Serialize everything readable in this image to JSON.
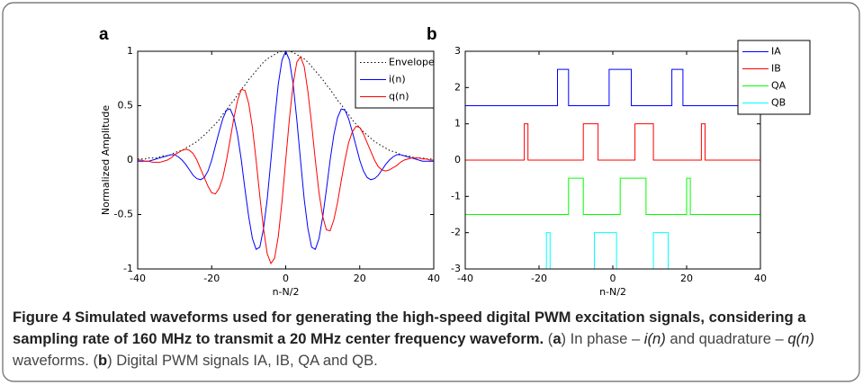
{
  "chart_data": [
    {
      "type": "line",
      "panel_label": "a",
      "xlabel": "n-N/2",
      "ylabel": "Normalized Amplitude",
      "xlim": [
        -40,
        40
      ],
      "ylim": [
        -1,
        1
      ],
      "xticks": [
        -40,
        -20,
        0,
        20,
        40
      ],
      "yticks": [
        -1,
        -0.5,
        0,
        0.5,
        1
      ],
      "grid": false,
      "legend": "upper right",
      "x": [
        -40,
        -39,
        -38,
        -37,
        -36,
        -35,
        -34,
        -33,
        -32,
        -31,
        -30,
        -29,
        -28,
        -27,
        -26,
        -25,
        -24,
        -23,
        -22,
        -21,
        -20,
        -19,
        -18,
        -17,
        -16,
        -15,
        -14,
        -13,
        -12,
        -11,
        -10,
        -9,
        -8,
        -7,
        -6,
        -5,
        -4,
        -3,
        -2,
        -1,
        0,
        1,
        2,
        3,
        4,
        5,
        6,
        7,
        8,
        9,
        10,
        11,
        12,
        13,
        14,
        15,
        16,
        17,
        18,
        19,
        20,
        21,
        22,
        23,
        24,
        25,
        26,
        27,
        28,
        29,
        30,
        31,
        32,
        33,
        34,
        35,
        36,
        37,
        38,
        39,
        40
      ],
      "series": [
        {
          "name": "Envelope",
          "color": "#000000",
          "style": "dotted",
          "values": [
            0.01,
            0.01,
            0.01,
            0.02,
            0.02,
            0.02,
            0.03,
            0.04,
            0.04,
            0.05,
            0.07,
            0.08,
            0.09,
            0.11,
            0.13,
            0.15,
            0.17,
            0.2,
            0.23,
            0.26,
            0.3,
            0.33,
            0.37,
            0.42,
            0.46,
            0.51,
            0.55,
            0.6,
            0.65,
            0.69,
            0.74,
            0.78,
            0.82,
            0.86,
            0.9,
            0.93,
            0.95,
            0.97,
            0.99,
            1.0,
            1.0,
            1.0,
            0.99,
            0.97,
            0.95,
            0.93,
            0.9,
            0.86,
            0.82,
            0.78,
            0.74,
            0.69,
            0.65,
            0.6,
            0.55,
            0.51,
            0.46,
            0.42,
            0.37,
            0.33,
            0.3,
            0.26,
            0.23,
            0.2,
            0.17,
            0.15,
            0.13,
            0.11,
            0.09,
            0.08,
            0.07,
            0.05,
            0.04,
            0.04,
            0.03,
            0.02,
            0.02,
            0.02,
            0.01,
            0.01,
            0.01
          ]
        },
        {
          "name": "i(n)",
          "color": "#0000ff",
          "style": "solid",
          "values": [
            -0.01,
            -0.01,
            -0.01,
            -0.01,
            0,
            0.01,
            0.02,
            0.03,
            0.04,
            0.05,
            0.05,
            0.03,
            0,
            -0.04,
            -0.09,
            -0.14,
            -0.17,
            -0.18,
            -0.16,
            -0.1,
            0,
            0.13,
            0.26,
            0.38,
            0.46,
            0.47,
            0.39,
            0.23,
            0,
            -0.27,
            -0.52,
            -0.72,
            -0.82,
            -0.8,
            -0.63,
            -0.36,
            0,
            0.37,
            0.7,
            0.92,
            1.0,
            0.92,
            0.7,
            0.37,
            0,
            -0.36,
            -0.63,
            -0.8,
            -0.82,
            -0.72,
            -0.52,
            -0.27,
            0,
            0.23,
            0.39,
            0.47,
            0.46,
            0.38,
            0.26,
            0.13,
            0,
            -0.1,
            -0.16,
            -0.18,
            -0.17,
            -0.14,
            -0.09,
            -0.04,
            0,
            0.03,
            0.05,
            0.05,
            0.04,
            0.03,
            0.02,
            0.01,
            0,
            -0.01,
            -0.01,
            -0.01,
            -0.01
          ]
        },
        {
          "name": "q(n)",
          "color": "#ff0000",
          "style": "solid",
          "values": [
            0,
            0,
            -0.01,
            -0.01,
            -0.02,
            -0.02,
            -0.02,
            -0.01,
            0,
            0.02,
            0.05,
            0.07,
            0.09,
            0.1,
            0.09,
            0.06,
            0,
            -0.08,
            -0.16,
            -0.24,
            -0.3,
            -0.31,
            -0.26,
            -0.16,
            0,
            0.19,
            0.39,
            0.55,
            0.65,
            0.64,
            0.52,
            0.3,
            0,
            -0.33,
            -0.63,
            -0.86,
            -0.95,
            -0.9,
            -0.7,
            -0.38,
            0,
            0.38,
            0.7,
            0.9,
            0.95,
            0.86,
            0.63,
            0.33,
            0,
            -0.3,
            -0.52,
            -0.64,
            -0.65,
            -0.55,
            -0.39,
            -0.19,
            0,
            0.16,
            0.26,
            0.31,
            0.3,
            0.24,
            0.16,
            0.08,
            0,
            -0.06,
            -0.09,
            -0.1,
            -0.09,
            -0.07,
            -0.05,
            -0.02,
            0,
            0.01,
            0.02,
            0.02,
            0.02,
            0.01,
            0.01,
            0,
            0
          ]
        }
      ]
    },
    {
      "type": "line",
      "panel_label": "b",
      "xlabel": "n-N/2",
      "xlim": [
        -40,
        40
      ],
      "ylim": [
        -3,
        3
      ],
      "xticks": [
        -40,
        -20,
        0,
        20,
        40
      ],
      "yticks": [
        -3,
        -2,
        -1,
        0,
        1,
        2,
        3
      ],
      "grid": false,
      "legend": "upper right",
      "series": [
        {
          "name": "IA",
          "color": "#0000ff",
          "style": "solid",
          "x": [
            -40,
            -15,
            -15,
            -12,
            -12,
            -1,
            -1,
            5,
            5,
            16,
            16,
            19,
            19,
            40
          ],
          "values": [
            1.5,
            1.5,
            2.5,
            2.5,
            1.5,
            1.5,
            2.5,
            2.5,
            1.5,
            1.5,
            2.5,
            2.5,
            1.5,
            1.5
          ]
        },
        {
          "name": "IB",
          "color": "#ff0000",
          "style": "solid",
          "x": [
            -40,
            -24,
            -24,
            -23,
            -23,
            -8,
            -8,
            -4,
            -4,
            6,
            6,
            11,
            11,
            24,
            24,
            25,
            25,
            40
          ],
          "values": [
            0,
            0,
            1,
            1,
            0,
            0,
            1,
            1,
            0,
            0,
            1,
            1,
            0,
            0,
            1,
            1,
            0,
            0
          ]
        },
        {
          "name": "QA",
          "color": "#00ff00",
          "style": "solid",
          "x": [
            -40,
            -12,
            -12,
            -8,
            -8,
            2,
            2,
            9,
            9,
            20,
            20,
            21,
            21,
            40
          ],
          "values": [
            -1.5,
            -1.5,
            -0.5,
            -0.5,
            -1.5,
            -1.5,
            -0.5,
            -0.5,
            -1.5,
            -1.5,
            -0.5,
            -0.5,
            -1.5,
            -1.5
          ]
        },
        {
          "name": "QB",
          "color": "#00ffff",
          "style": "solid",
          "x": [
            -40,
            -18,
            -18,
            -17,
            -17,
            -5,
            -5,
            1,
            1,
            11,
            11,
            15,
            15,
            40
          ],
          "values": [
            -3,
            -3,
            -2,
            -2,
            -3,
            -3,
            -2,
            -2,
            -3,
            -3,
            -2,
            -2,
            -3,
            -3
          ]
        }
      ]
    }
  ],
  "caption": {
    "runs": [
      {
        "text": "Figure 4 Simulated waveforms used for generating the high-speed digital PWM excitation signals, considering a sampling rate of 160 MHz to transmit a 20 MHz center frequency waveform.",
        "style": "bold"
      },
      {
        "text": " (",
        "style": "normal"
      },
      {
        "text": "a",
        "style": "bold"
      },
      {
        "text": ") In phase – ",
        "style": "normal"
      },
      {
        "text": "i(n)",
        "style": "italic"
      },
      {
        "text": " and quadrature – ",
        "style": "normal"
      },
      {
        "text": "q(n)",
        "style": "italic"
      },
      {
        "text": " waveforms. (",
        "style": "normal"
      },
      {
        "text": "b",
        "style": "bold"
      },
      {
        "text": ") Digital PWM signals IA, IB, QA and QB.",
        "style": "normal"
      }
    ]
  }
}
